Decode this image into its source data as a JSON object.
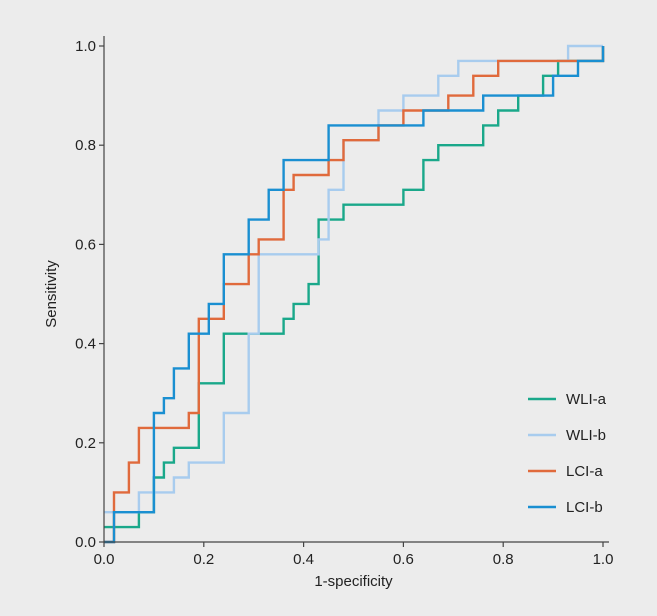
{
  "chart_data": {
    "type": "line",
    "xlabel": "1-specificity",
    "ylabel": "Sensitivity",
    "xlim": [
      0,
      1
    ],
    "ylim": [
      0,
      1
    ],
    "xticks": [
      "0.0",
      "0.2",
      "0.4",
      "0.6",
      "0.8",
      "1.0"
    ],
    "yticks": [
      "0.0",
      "0.2",
      "0.4",
      "0.6",
      "0.8",
      "1.0"
    ],
    "grid": false,
    "legend_position": "bottom-right",
    "series": [
      {
        "name": "WLI-a",
        "color": "#1aa88a",
        "x": [
          0.0,
          0.07,
          0.07,
          0.1,
          0.1,
          0.12,
          0.12,
          0.14,
          0.14,
          0.19,
          0.19,
          0.24,
          0.24,
          0.36,
          0.36,
          0.38,
          0.38,
          0.41,
          0.41,
          0.43,
          0.43,
          0.48,
          0.48,
          0.6,
          0.6,
          0.64,
          0.64,
          0.67,
          0.67,
          0.76,
          0.76,
          0.79,
          0.79,
          0.83,
          0.83,
          0.88,
          0.88,
          0.91,
          0.91,
          1.0,
          1.0
        ],
        "y": [
          0.03,
          0.03,
          0.06,
          0.06,
          0.13,
          0.13,
          0.16,
          0.16,
          0.19,
          0.19,
          0.32,
          0.32,
          0.42,
          0.42,
          0.45,
          0.45,
          0.48,
          0.48,
          0.52,
          0.52,
          0.65,
          0.65,
          0.68,
          0.68,
          0.71,
          0.71,
          0.77,
          0.77,
          0.8,
          0.8,
          0.84,
          0.84,
          0.87,
          0.87,
          0.9,
          0.9,
          0.94,
          0.94,
          0.97,
          0.97,
          1.0
        ]
      },
      {
        "name": "WLI-b",
        "color": "#a8ccee",
        "x": [
          0.0,
          0.07,
          0.07,
          0.14,
          0.14,
          0.17,
          0.17,
          0.24,
          0.24,
          0.29,
          0.29,
          0.31,
          0.31,
          0.43,
          0.43,
          0.45,
          0.45,
          0.48,
          0.48,
          0.55,
          0.55,
          0.6,
          0.6,
          0.67,
          0.67,
          0.71,
          0.71,
          0.93,
          0.93,
          1.0
        ],
        "y": [
          0.06,
          0.06,
          0.1,
          0.1,
          0.13,
          0.13,
          0.16,
          0.16,
          0.26,
          0.26,
          0.42,
          0.42,
          0.58,
          0.58,
          0.61,
          0.61,
          0.71,
          0.71,
          0.81,
          0.81,
          0.87,
          0.87,
          0.9,
          0.9,
          0.94,
          0.94,
          0.97,
          0.97,
          1.0,
          1.0
        ]
      },
      {
        "name": "LCI-a",
        "color": "#e06a3c",
        "x": [
          0.0,
          0.02,
          0.02,
          0.05,
          0.05,
          0.07,
          0.07,
          0.17,
          0.17,
          0.19,
          0.19,
          0.24,
          0.24,
          0.29,
          0.29,
          0.31,
          0.31,
          0.36,
          0.36,
          0.38,
          0.38,
          0.45,
          0.45,
          0.48,
          0.48,
          0.55,
          0.55,
          0.6,
          0.6,
          0.69,
          0.69,
          0.74,
          0.74,
          0.79,
          0.79,
          0.86,
          0.86,
          1.0,
          1.0
        ],
        "y": [
          0.0,
          0.0,
          0.1,
          0.1,
          0.16,
          0.16,
          0.23,
          0.23,
          0.26,
          0.26,
          0.45,
          0.45,
          0.52,
          0.52,
          0.58,
          0.58,
          0.61,
          0.61,
          0.71,
          0.71,
          0.74,
          0.74,
          0.77,
          0.77,
          0.81,
          0.81,
          0.84,
          0.84,
          0.87,
          0.87,
          0.9,
          0.9,
          0.94,
          0.94,
          0.97,
          0.97,
          0.97,
          0.97,
          1.0
        ]
      },
      {
        "name": "LCI-b",
        "color": "#1a8fd1",
        "x": [
          0.0,
          0.02,
          0.02,
          0.1,
          0.1,
          0.12,
          0.12,
          0.14,
          0.14,
          0.17,
          0.17,
          0.21,
          0.21,
          0.24,
          0.24,
          0.29,
          0.29,
          0.33,
          0.33,
          0.36,
          0.36,
          0.45,
          0.45,
          0.64,
          0.64,
          0.76,
          0.76,
          0.9,
          0.9,
          0.95,
          0.95,
          1.0,
          1.0
        ],
        "y": [
          0.0,
          0.0,
          0.06,
          0.06,
          0.26,
          0.26,
          0.29,
          0.29,
          0.35,
          0.35,
          0.42,
          0.42,
          0.48,
          0.48,
          0.58,
          0.58,
          0.65,
          0.65,
          0.71,
          0.71,
          0.77,
          0.77,
          0.84,
          0.84,
          0.87,
          0.87,
          0.9,
          0.9,
          0.94,
          0.94,
          0.97,
          0.97,
          1.0
        ]
      }
    ]
  }
}
